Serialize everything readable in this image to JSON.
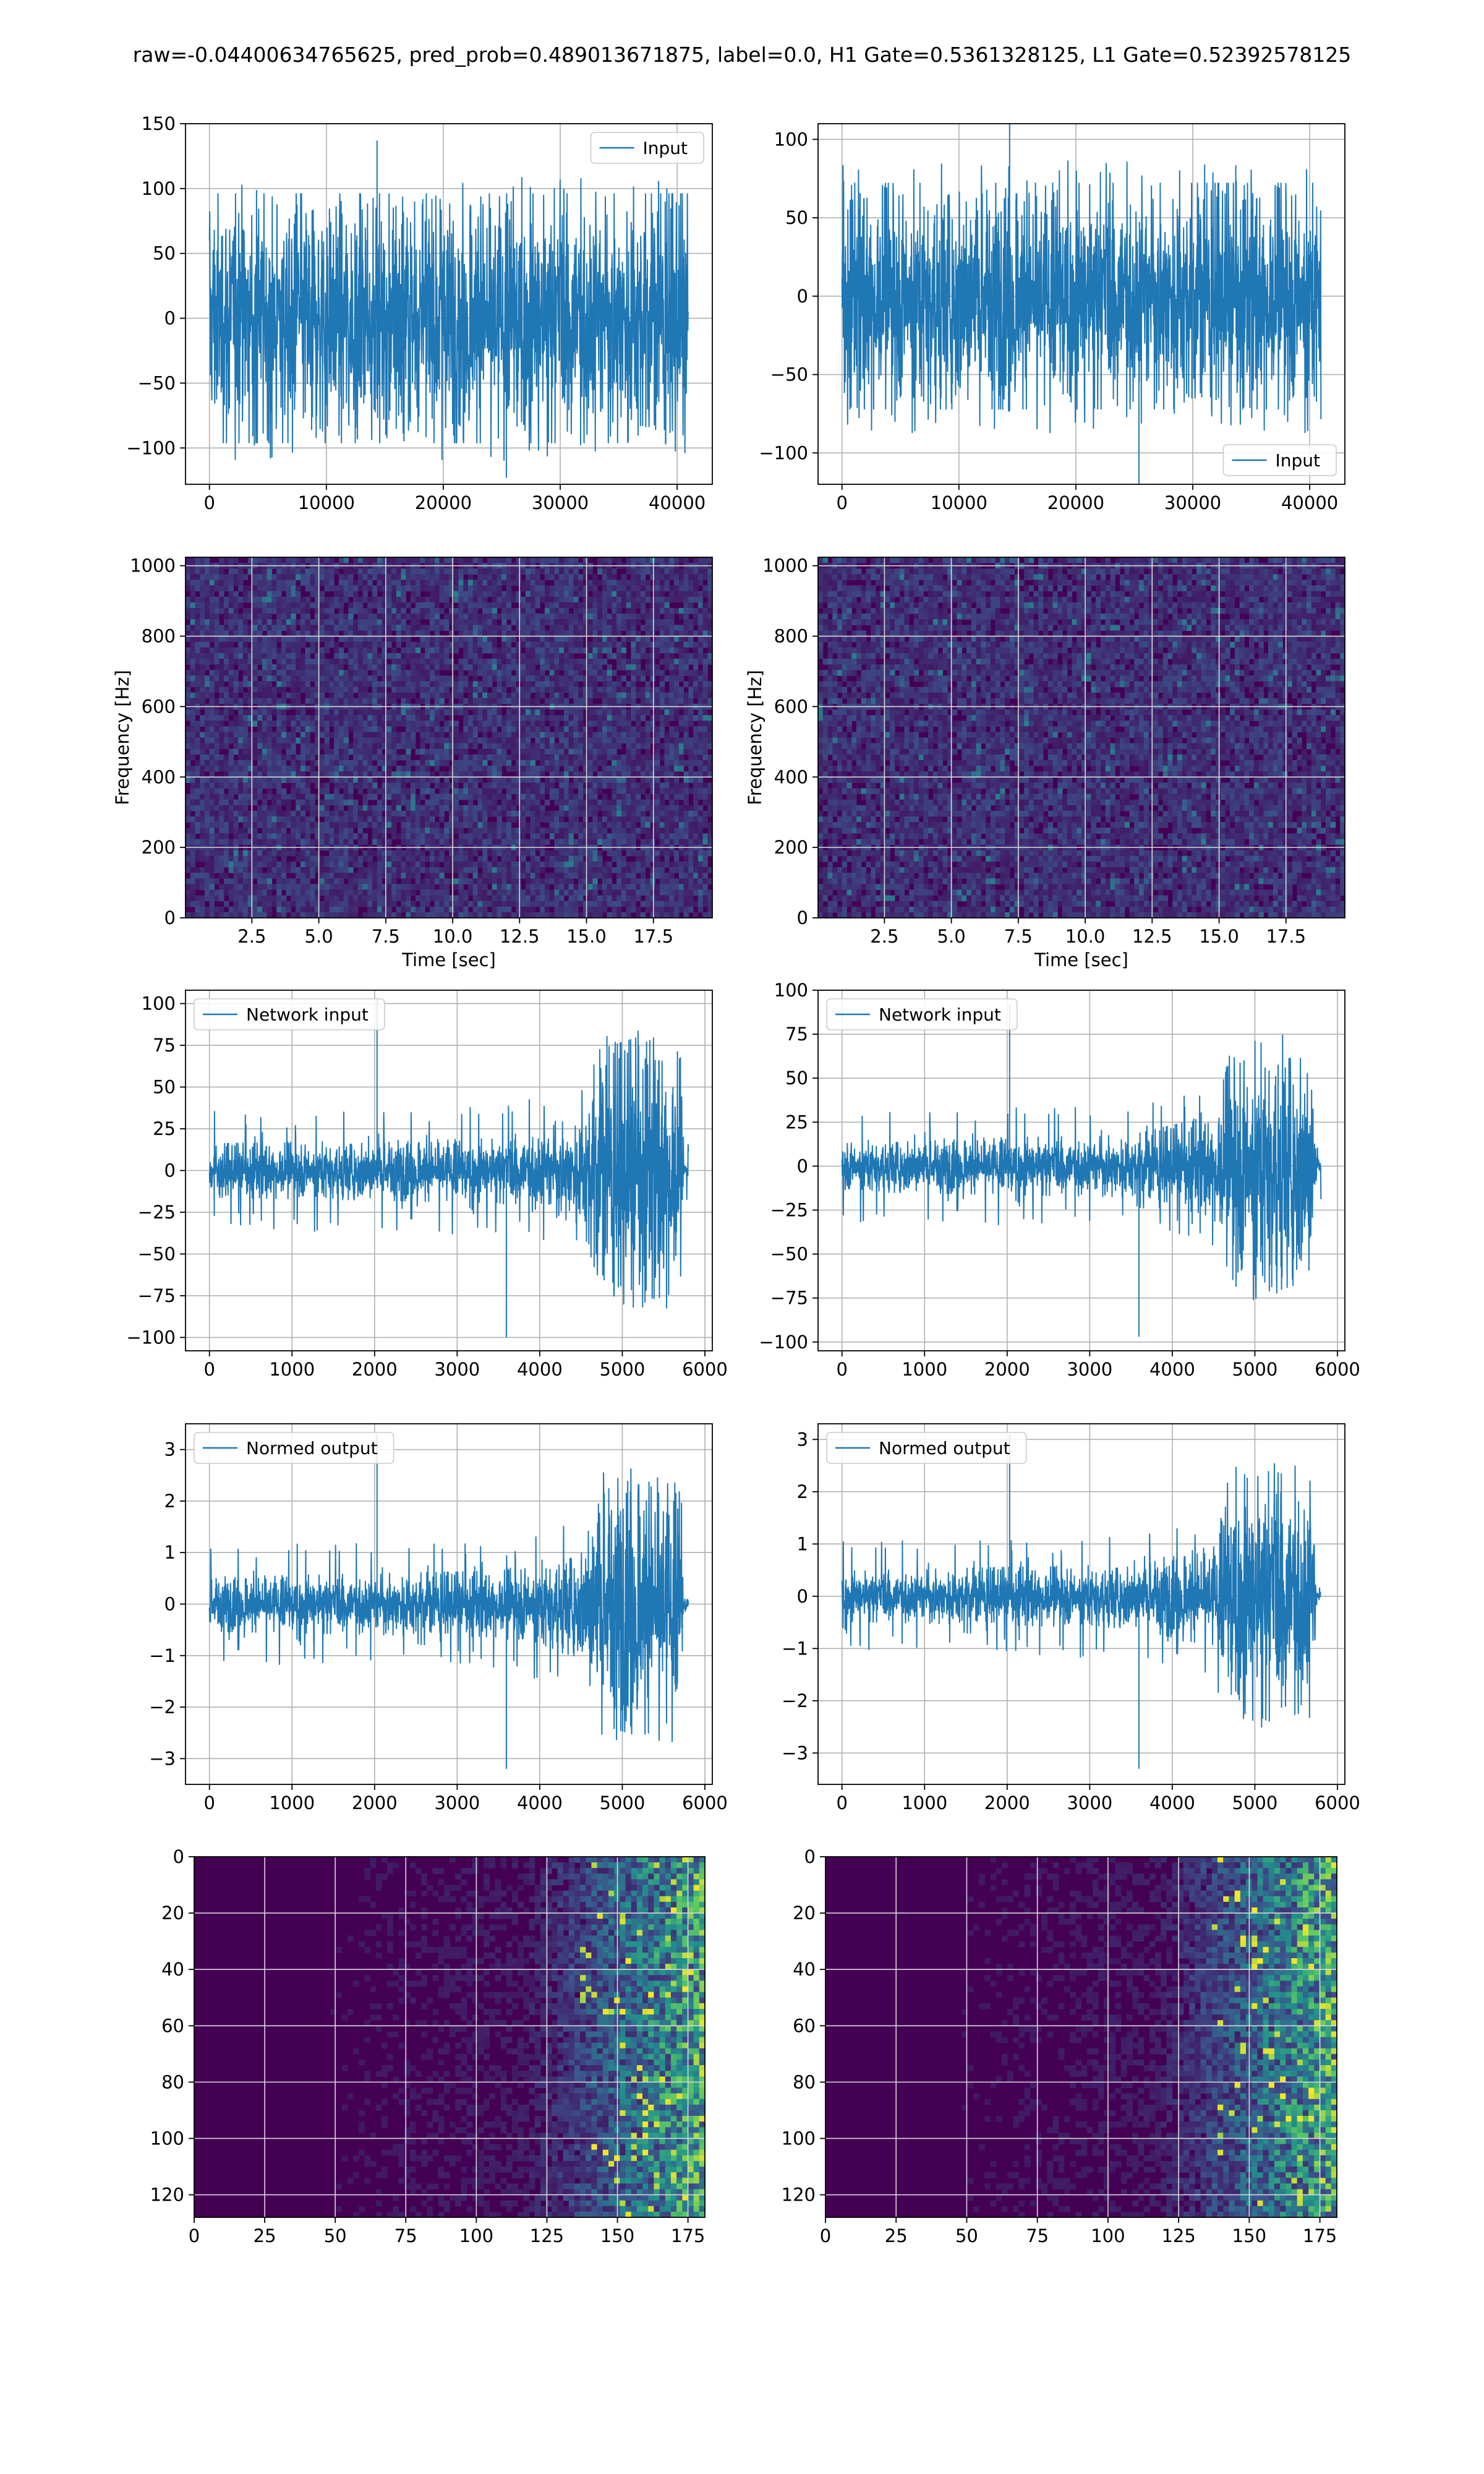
{
  "figure": {
    "suptitle": "raw=-0.04400634765625, pred_prob=0.489013671875, label=0.0, H1 Gate=0.5361328125, L1 Gate=0.52392578125"
  },
  "colors": {
    "line": "#1f77b4",
    "grid": "#b0b0b0",
    "viridis_low": "#440154",
    "viridis_mid": "#21918c",
    "viridis_high": "#fde725"
  },
  "chart_data": [
    {
      "id": "input-h1",
      "type": "line",
      "legend": "Input",
      "legend_loc": "upper right",
      "x_range": [
        0,
        40960
      ],
      "xlim": [
        -2048,
        43008
      ],
      "ylim": [
        -128,
        150
      ],
      "xticks": [
        0,
        10000,
        20000,
        30000,
        40000
      ],
      "xtick_labels": [
        "0",
        "10000",
        "20000",
        "30000",
        "40000"
      ],
      "yticks": [
        -100,
        -50,
        0,
        50,
        100,
        150
      ],
      "ytick_labels": [
        "−100",
        "−50",
        "0",
        "50",
        "100",
        "150"
      ],
      "envelope": {
        "x": [
          0,
          40960
        ],
        "upper": [
          60,
          60
        ],
        "lower": [
          -60,
          -60
        ]
      },
      "peaks": {
        "max": 137,
        "min": -123
      },
      "xlabel": "",
      "ylabel": "",
      "grid": true
    },
    {
      "id": "input-l1",
      "type": "line",
      "legend": "Input",
      "legend_loc": "lower right",
      "x_range": [
        0,
        40960
      ],
      "xlim": [
        -2048,
        43008
      ],
      "ylim": [
        -120,
        110
      ],
      "xticks": [
        0,
        10000,
        20000,
        30000,
        40000
      ],
      "xtick_labels": [
        "0",
        "10000",
        "20000",
        "30000",
        "40000"
      ],
      "yticks": [
        -100,
        -50,
        0,
        50,
        100
      ],
      "ytick_labels": [
        "−100",
        "−50",
        "0",
        "50",
        "100"
      ],
      "envelope": {
        "x": [
          0,
          40960
        ],
        "upper": [
          45,
          45
        ],
        "lower": [
          -45,
          -45
        ]
      },
      "peaks": {
        "max": 117,
        "min": -120
      },
      "xlabel": "",
      "ylabel": "",
      "grid": true
    },
    {
      "id": "spectrogram-h1",
      "type": "heatmap",
      "cmap": "viridis",
      "xlim": [
        0.02,
        19.7
      ],
      "ylim": [
        0,
        1024
      ],
      "xticks": [
        2.5,
        5.0,
        7.5,
        10.0,
        12.5,
        15.0,
        17.5
      ],
      "xtick_labels": [
        "2.5",
        "5.0",
        "7.5",
        "10.0",
        "12.5",
        "15.0",
        "17.5"
      ],
      "yticks": [
        0,
        200,
        400,
        600,
        800,
        1000
      ],
      "ytick_labels": [
        "0",
        "200",
        "400",
        "600",
        "800",
        "1000"
      ],
      "xlabel": "Time [sec]",
      "ylabel": "Frequency [Hz]",
      "grid": true
    },
    {
      "id": "spectrogram-l1",
      "type": "heatmap",
      "cmap": "viridis",
      "xlim": [
        0.02,
        19.7
      ],
      "ylim": [
        0,
        1024
      ],
      "xticks": [
        2.5,
        5.0,
        7.5,
        10.0,
        12.5,
        15.0,
        17.5
      ],
      "xtick_labels": [
        "2.5",
        "5.0",
        "7.5",
        "10.0",
        "12.5",
        "15.0",
        "17.5"
      ],
      "yticks": [
        0,
        200,
        400,
        600,
        800,
        1000
      ],
      "ytick_labels": [
        "0",
        "200",
        "400",
        "600",
        "800",
        "1000"
      ],
      "xlabel": "Time [sec]",
      "ylabel": "Frequency [Hz]",
      "grid": true
    },
    {
      "id": "network-input-h1",
      "type": "line",
      "legend": "Network input",
      "legend_loc": "upper left",
      "x_range": [
        0,
        5800
      ],
      "xlim": [
        -290,
        6090
      ],
      "ylim": [
        -108,
        108
      ],
      "xticks": [
        0,
        1000,
        2000,
        3000,
        4000,
        5000,
        6000
      ],
      "xtick_labels": [
        "0",
        "1000",
        "2000",
        "3000",
        "4000",
        "5000",
        "6000"
      ],
      "yticks": [
        -100,
        -75,
        -50,
        -25,
        0,
        25,
        50,
        75,
        100
      ],
      "ytick_labels": [
        "−100",
        "−75",
        "−50",
        "−25",
        "0",
        "25",
        "50",
        "75",
        "100"
      ],
      "envelope": {
        "x": [
          0,
          3500,
          4500,
          4700,
          5200,
          5700,
          5750,
          5800
        ],
        "upper": [
          10,
          12,
          20,
          45,
          50,
          45,
          3,
          3
        ],
        "lower": [
          -10,
          -12,
          -20,
          -45,
          -50,
          -45,
          -3,
          -3
        ]
      },
      "peaks": {
        "max": 103,
        "min": -100
      },
      "xlabel": "",
      "ylabel": "",
      "grid": true
    },
    {
      "id": "network-input-l1",
      "type": "line",
      "legend": "Network input",
      "legend_loc": "upper left",
      "x_range": [
        0,
        5800
      ],
      "xlim": [
        -290,
        6090
      ],
      "ylim": [
        -105,
        100
      ],
      "xticks": [
        0,
        1000,
        2000,
        3000,
        4000,
        5000,
        6000
      ],
      "xtick_labels": [
        "0",
        "1000",
        "2000",
        "3000",
        "4000",
        "5000",
        "6000"
      ],
      "yticks": [
        -100,
        -75,
        -50,
        -25,
        0,
        25,
        50,
        75,
        100
      ],
      "ytick_labels": [
        "−100",
        "−75",
        "−50",
        "−25",
        "0",
        "25",
        "50",
        "75",
        "100"
      ],
      "envelope": {
        "x": [
          0,
          3500,
          4500,
          4700,
          5200,
          5700,
          5750,
          5800
        ],
        "upper": [
          9,
          11,
          18,
          40,
          45,
          40,
          3,
          3
        ],
        "lower": [
          -9,
          -11,
          -18,
          -40,
          -45,
          -40,
          -3,
          -3
        ]
      },
      "peaks": {
        "max": 92,
        "min": -97
      },
      "xlabel": "",
      "ylabel": "",
      "grid": true
    },
    {
      "id": "normed-output-h1",
      "type": "line",
      "legend": "Normed output",
      "legend_loc": "upper left",
      "x_range": [
        0,
        5800
      ],
      "xlim": [
        -290,
        6090
      ],
      "ylim": [
        -3.5,
        3.5
      ],
      "xticks": [
        0,
        1000,
        2000,
        3000,
        4000,
        5000,
        6000
      ],
      "xtick_labels": [
        "0",
        "1000",
        "2000",
        "3000",
        "4000",
        "5000",
        "6000"
      ],
      "yticks": [
        -3,
        -2,
        -1,
        0,
        1,
        2,
        3
      ],
      "ytick_labels": [
        "−3",
        "−2",
        "−1",
        "0",
        "1",
        "2",
        "3"
      ],
      "envelope": {
        "x": [
          0,
          3500,
          4500,
          4700,
          5200,
          5700,
          5750,
          5800
        ],
        "upper": [
          0.33,
          0.4,
          0.65,
          1.45,
          1.6,
          1.45,
          0.1,
          0.1
        ],
        "lower": [
          -0.33,
          -0.4,
          -0.65,
          -1.45,
          -1.6,
          -1.45,
          -0.1,
          -0.1
        ]
      },
      "peaks": {
        "max": 3.3,
        "min": -3.2
      },
      "xlabel": "",
      "ylabel": "",
      "grid": true
    },
    {
      "id": "normed-output-l1",
      "type": "line",
      "legend": "Normed output",
      "legend_loc": "upper left",
      "x_range": [
        0,
        5800
      ],
      "xlim": [
        -290,
        6090
      ],
      "ylim": [
        -3.6,
        3.3
      ],
      "xticks": [
        0,
        1000,
        2000,
        3000,
        4000,
        5000,
        6000
      ],
      "xtick_labels": [
        "0",
        "1000",
        "2000",
        "3000",
        "4000",
        "5000",
        "6000"
      ],
      "yticks": [
        -3,
        -2,
        -1,
        0,
        1,
        2,
        3
      ],
      "ytick_labels": [
        "−3",
        "−2",
        "−1",
        "0",
        "1",
        "2",
        "3"
      ],
      "envelope": {
        "x": [
          0,
          3500,
          4500,
          4700,
          5200,
          5700,
          5750,
          5800
        ],
        "upper": [
          0.3,
          0.38,
          0.6,
          1.35,
          1.5,
          1.35,
          0.1,
          0.1
        ],
        "lower": [
          -0.3,
          -0.38,
          -0.6,
          -1.35,
          -1.5,
          -1.35,
          -0.1,
          -0.1
        ]
      },
      "peaks": {
        "max": 3.1,
        "min": -3.3
      },
      "xlabel": "",
      "ylabel": "",
      "grid": true
    },
    {
      "id": "feature-map-h1",
      "type": "heatmap",
      "cmap": "viridis",
      "xlim": [
        0,
        181
      ],
      "ylim": [
        128,
        0
      ],
      "xticks": [
        0,
        25,
        50,
        75,
        100,
        125,
        150,
        175
      ],
      "xtick_labels": [
        "0",
        "25",
        "50",
        "75",
        "100",
        "125",
        "150",
        "175"
      ],
      "yticks": [
        0,
        20,
        40,
        60,
        80,
        100,
        120
      ],
      "ytick_labels": [
        "0",
        "20",
        "40",
        "60",
        "80",
        "100",
        "120"
      ],
      "xlabel": "",
      "ylabel": "",
      "grid": true
    },
    {
      "id": "feature-map-l1",
      "type": "heatmap",
      "cmap": "viridis",
      "xlim": [
        0,
        181
      ],
      "ylim": [
        128,
        0
      ],
      "xticks": [
        0,
        25,
        50,
        75,
        100,
        125,
        150,
        175
      ],
      "xtick_labels": [
        "0",
        "25",
        "50",
        "75",
        "100",
        "125",
        "150",
        "175"
      ],
      "yticks": [
        0,
        20,
        40,
        60,
        80,
        100,
        120
      ],
      "ytick_labels": [
        "0",
        "20",
        "40",
        "60",
        "80",
        "100",
        "120"
      ],
      "xlabel": "",
      "ylabel": "",
      "grid": true
    }
  ]
}
